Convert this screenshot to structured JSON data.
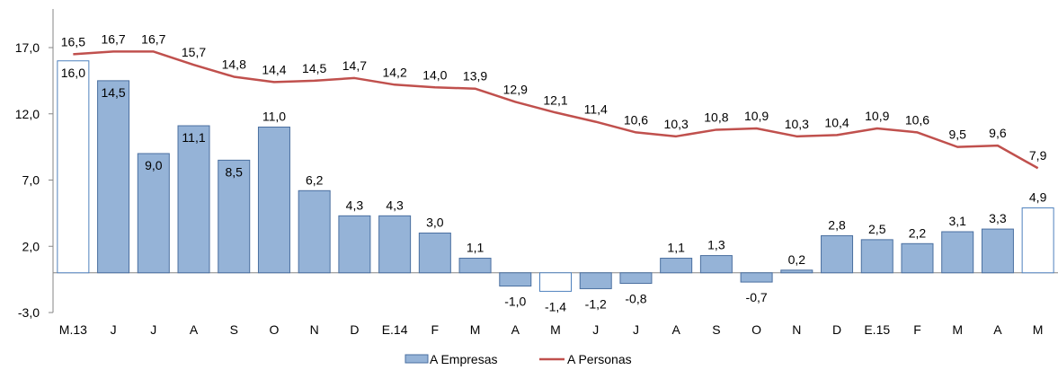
{
  "chart_data": {
    "type": "bar",
    "categories": [
      "M.13",
      "J",
      "J",
      "A",
      "S",
      "O",
      "N",
      "D",
      "E.14",
      "F",
      "M",
      "A",
      "M",
      "J",
      "J",
      "A",
      "S",
      "O",
      "N",
      "D",
      "E.15",
      "F",
      "M",
      "A",
      "M"
    ],
    "series": [
      {
        "name": "A Empresas",
        "type": "bar",
        "color": "#95B3D7",
        "values": [
          16.0,
          14.5,
          9.0,
          11.1,
          8.5,
          11.0,
          6.2,
          4.3,
          4.3,
          3.0,
          1.1,
          -1.0,
          -1.4,
          -1.2,
          -0.8,
          1.1,
          1.3,
          -0.7,
          0.2,
          2.8,
          2.5,
          2.2,
          3.1,
          3.3,
          4.9
        ],
        "labels": [
          "16,0",
          "14,5",
          "9,0",
          "11,1",
          "8,5",
          "11,0",
          "6,2",
          "4,3",
          "4,3",
          "3,0",
          "1,1",
          "-1,0",
          "-1,4",
          "-1,2",
          "-0,8",
          "1,1",
          "1,3",
          "-0,7",
          "0,2",
          "2,8",
          "2,5",
          "2,2",
          "3,1",
          "3,3",
          "4,9"
        ],
        "hollow_indices": [
          0,
          12,
          24
        ]
      },
      {
        "name": "A Personas",
        "type": "line",
        "color": "#C0504D",
        "values": [
          16.5,
          16.7,
          16.7,
          15.7,
          14.8,
          14.4,
          14.5,
          14.7,
          14.2,
          14.0,
          13.9,
          12.9,
          12.1,
          11.4,
          10.6,
          10.3,
          10.8,
          10.9,
          10.3,
          10.4,
          10.9,
          10.6,
          9.5,
          9.6,
          7.9
        ],
        "labels": [
          "16,5",
          "16,7",
          "16,7",
          "15,7",
          "14,8",
          "14,4",
          "14,5",
          "14,7",
          "14,2",
          "14,0",
          "13,9",
          "12,9",
          "12,1",
          "11,4",
          "10,6",
          "10,3",
          "10,8",
          "10,9",
          "10,3",
          "10,4",
          "10,9",
          "10,6",
          "9,5",
          "9,6",
          "7,9"
        ]
      }
    ],
    "ylim": [
      -3.0,
      17.0
    ],
    "yticks": [
      -3.0,
      2.0,
      7.0,
      12.0,
      17.0
    ],
    "ytick_labels": [
      "-3,0",
      "2,0",
      "7,0",
      "12,0",
      "17,0"
    ],
    "legend_position": "bottom-center",
    "grid": false
  },
  "legend": {
    "empresas": "A Empresas",
    "personas": "A Personas"
  }
}
